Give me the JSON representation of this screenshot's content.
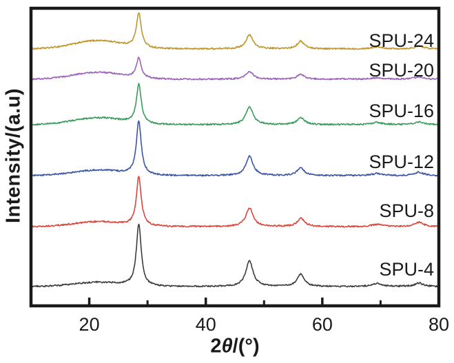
{
  "figure": {
    "background": "#ffffff",
    "frame_color": "#1a1a1a",
    "text_color": "#1a1a1a"
  },
  "chart_data": {
    "type": "line",
    "description": "Stacked XRD patterns of six SPU samples",
    "title": "",
    "xlabel": "2θ/(°)",
    "xlabel_parts": {
      "pre": "2",
      "theta": "θ",
      "post": "/(°)"
    },
    "ylabel": "Intensity/(a.u)",
    "xlim": [
      10,
      80
    ],
    "x_major_ticks": [
      20,
      40,
      60,
      80
    ],
    "x_minor_ticks": [
      30,
      50,
      70
    ],
    "grid": "off",
    "legend_position": "in-plot right-side labels",
    "peak_positions_2theta": [
      28.5,
      47.5,
      56.3,
      69.4,
      76.6
    ],
    "peak_widths_deg": [
      0.5,
      0.75,
      0.75,
      1.1,
      0.9
    ],
    "amorphous_hump": {
      "center_2theta": 21.5,
      "sigma_deg": 4.2
    },
    "series": [
      {
        "name": "SPU-24",
        "color": "#c0962c",
        "baseline": 71,
        "hump_height": 12,
        "peak_heights": [
          50,
          20,
          11,
          3,
          4
        ],
        "label_dy": -3
      },
      {
        "name": "SPU-20",
        "color": "#9c63b8",
        "baseline": 115,
        "hump_height": 10,
        "peak_heights": [
          29,
          11,
          7,
          2,
          3
        ],
        "label_dy": -4
      },
      {
        "name": "SPU-16",
        "color": "#399b5a",
        "baseline": 181,
        "hump_height": 10,
        "peak_heights": [
          57,
          26,
          10,
          3,
          4
        ],
        "label_dy": -11
      },
      {
        "name": "SPU-12",
        "color": "#3b55a5",
        "baseline": 255,
        "hump_height": 8,
        "peak_heights": [
          78,
          28,
          11,
          3,
          5
        ],
        "label_dy": -11
      },
      {
        "name": "SPU-8",
        "color": "#d9443b",
        "baseline": 329,
        "hump_height": 7,
        "peak_heights": [
          72,
          27,
          12,
          3,
          6
        ],
        "label_dy": -14
      },
      {
        "name": "SPU-4",
        "color": "#3f3a3a",
        "baseline": 416,
        "hump_height": 6,
        "peak_heights": [
          90,
          37,
          18,
          4,
          5
        ],
        "label_dy": -16
      }
    ]
  }
}
